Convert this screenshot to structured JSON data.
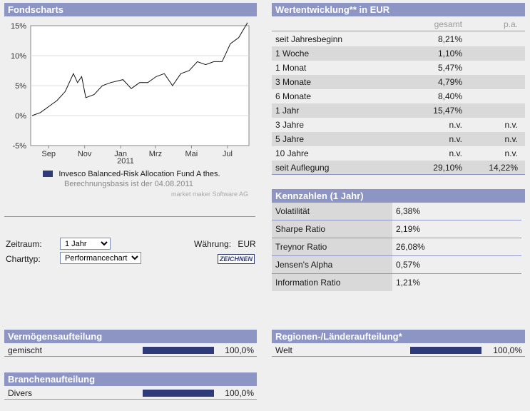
{
  "fondscharts": {
    "title": "Fondscharts",
    "legend": "Invesco Balanced-Risk Allocation Fund A thes.",
    "basis": "Berechnungsbasis ist der 04.08.2011",
    "credit": "market maker Software AG",
    "y_ticks": [
      "15%",
      "10%",
      "5%",
      "0%",
      "-5%"
    ],
    "x_ticks": [
      "Sep",
      "Nov",
      "Jan",
      "Mrz",
      "Mai",
      "Jul"
    ],
    "x_year": "2011",
    "series_color": "#2f3a78"
  },
  "chart_data": {
    "type": "line",
    "series": [
      {
        "name": "Invesco Balanced-Risk Allocation Fund A thes.",
        "x": [
          "2010-08-04",
          "2010-08-18",
          "2010-09-01",
          "2010-09-15",
          "2010-09-29",
          "2010-10-13",
          "2010-10-20",
          "2010-10-27",
          "2010-11-03",
          "2010-11-17",
          "2010-12-01",
          "2010-12-15",
          "2011-01-05",
          "2011-01-19",
          "2011-02-02",
          "2011-02-16",
          "2011-03-02",
          "2011-03-16",
          "2011-03-30",
          "2011-04-13",
          "2011-04-27",
          "2011-05-11",
          "2011-05-25",
          "2011-06-08",
          "2011-06-22",
          "2011-07-06",
          "2011-07-20",
          "2011-08-04"
        ],
        "y": [
          0.0,
          0.5,
          1.5,
          2.5,
          4.0,
          7.0,
          5.5,
          6.5,
          3.0,
          3.5,
          5.0,
          5.5,
          6.0,
          4.5,
          5.5,
          5.5,
          6.5,
          7.0,
          5.0,
          7.0,
          7.5,
          9.0,
          8.5,
          9.0,
          9.0,
          12.0,
          13.0,
          15.5
        ]
      }
    ],
    "ylim": [
      -5,
      15
    ],
    "y_ticks": [
      "15%",
      "10%",
      "5%",
      "0%",
      "-5%"
    ],
    "x_ticks": [
      "Sep",
      "Nov",
      "Jan",
      "Mrz",
      "Mai",
      "Jul"
    ],
    "grid": true,
    "legend": "bottom"
  },
  "controls": {
    "zeitraum_label": "Zeitraum:",
    "zeitraum_value": "1 Jahr",
    "charttyp_label": "Charttyp:",
    "charttyp_value": "Performancechart",
    "waehrung_label": "Währung:",
    "waehrung_value": "EUR",
    "zeichnen_label": "ZEICHNEN"
  },
  "wertentwicklung": {
    "title": "Wertentwicklung** in EUR",
    "col_gesamt": "gesamt",
    "col_pa": "p.a.",
    "rows": [
      {
        "label": "seit Jahresbeginn",
        "gesamt": "8,21%",
        "pa": ""
      },
      {
        "label": "1 Woche",
        "gesamt": "1,10%",
        "pa": ""
      },
      {
        "label": "1 Monat",
        "gesamt": "5,47%",
        "pa": ""
      },
      {
        "label": "3 Monate",
        "gesamt": "4,79%",
        "pa": ""
      },
      {
        "label": "6 Monate",
        "gesamt": "8,40%",
        "pa": ""
      },
      {
        "label": "1 Jahr",
        "gesamt": "15,47%",
        "pa": ""
      },
      {
        "label": "3 Jahre",
        "gesamt": "n.v.",
        "pa": "n.v."
      },
      {
        "label": "5 Jahre",
        "gesamt": "n.v.",
        "pa": "n.v."
      },
      {
        "label": "10 Jahre",
        "gesamt": "n.v.",
        "pa": "n.v."
      },
      {
        "label": "seit Auflegung",
        "gesamt": "29,10%",
        "pa": "14,22%"
      }
    ]
  },
  "kennzahlen": {
    "title": "Kennzahlen (1 Jahr)",
    "rows": [
      {
        "label": "Volatilität",
        "value": "6,38%"
      },
      {
        "label": "Sharpe Ratio",
        "value": "2,19%"
      },
      {
        "label": "Treynor Ratio",
        "value": "26,08%"
      },
      {
        "label": "Jensen's Alpha",
        "value": "0,57%"
      },
      {
        "label": "Information Ratio",
        "value": "1,21%"
      }
    ]
  },
  "vermoegen": {
    "title": "Vermögensaufteilung",
    "label": "gemischt",
    "value": "100,0%",
    "fraction": 1.0
  },
  "branchen": {
    "title": "Branchenaufteilung",
    "label": "Divers",
    "value": "100,0%",
    "fraction": 1.0
  },
  "regionen": {
    "title": "Regionen-/Länderaufteilung*",
    "label": "Welt",
    "value": "100,0%",
    "fraction": 1.0
  }
}
